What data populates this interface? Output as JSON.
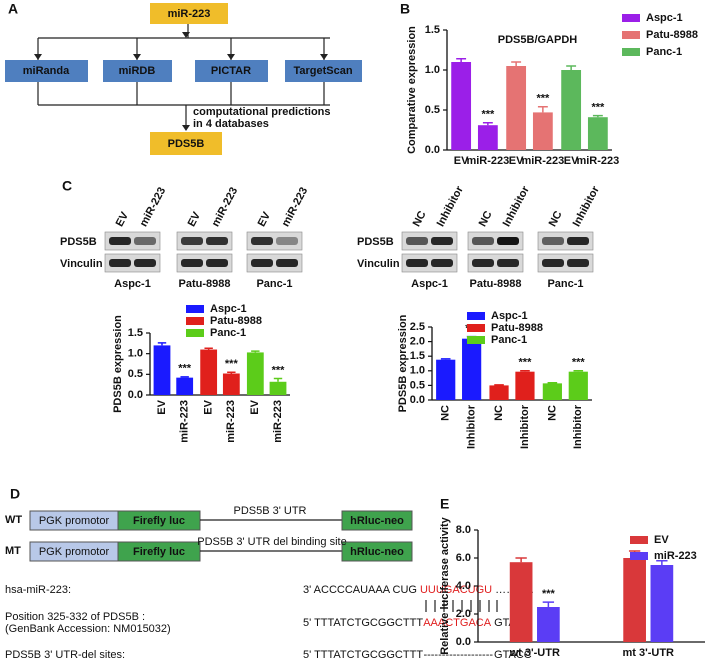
{
  "panel_labels": [
    "A",
    "B",
    "C",
    "D",
    "E"
  ],
  "flowchart": {
    "top": "miR-223",
    "databases": [
      "miRanda",
      "miRDB",
      "PICTAR",
      "TargetScan"
    ],
    "note": [
      "computational predictions",
      "in 4 databases"
    ],
    "result": "PDS5B"
  },
  "blots": [
    {
      "lanes": [
        "EV",
        "miR-223"
      ],
      "rows": [
        "PDS5B",
        "Vinculin"
      ],
      "cells": [
        "Aspc-1",
        "Patu-8988",
        "Panc-1"
      ]
    },
    {
      "lanes": [
        "NC",
        "Inhibitor"
      ],
      "rows": [
        "PDS5B",
        "Vinculin"
      ],
      "cells": [
        "Aspc-1",
        "Patu-8988",
        "Panc-1"
      ]
    }
  ],
  "construct": [
    {
      "label": "WT",
      "promoter": "PGK promotor",
      "luc": "Firefly luc",
      "utr": "PDS5B 3' UTR",
      "neo": "hRluc-neo"
    },
    {
      "label": "MT",
      "promoter": "PGK promotor",
      "luc": "Firefly luc",
      "utr": "PDS5B 3' UTR del binding site",
      "neo": "hRluc-neo"
    }
  ],
  "alignment": [
    {
      "label": [
        "hsa-miR-223:"
      ],
      "prefix": "3' ACCCCAUAAA CUG",
      "highlight": "UUUGACUGU",
      "suffix": "……. …"
    },
    {
      "label": [
        "Position 325-332 of PDS5B :",
        "(GenBank Accession: NM015032)"
      ],
      "prefix": "5'  TTTATCTGCGGCTTT",
      "highlight": "AAACTGACA",
      "suffix": "GTACC"
    },
    {
      "label": [
        "PDS5B 3' UTR-del sites:"
      ],
      "prefix": "5'  TTTATCTGCGGCTTT",
      "highlight": "-------------------",
      "suffix": "GTACC"
    }
  ],
  "chart_data": [
    {
      "type": "bar",
      "grouping": "by_series",
      "title": "PDS5B/GAPDH",
      "y_label": "Comparative expression",
      "categories": [
        "EV",
        "miR-223"
      ],
      "series": [
        {
          "name": "Aspc-1",
          "color": "#9b1fe8",
          "values": [
            1.1,
            0.31
          ],
          "errors": [
            0.04,
            0.03
          ],
          "significance": [
            null,
            "***"
          ]
        },
        {
          "name": "Patu-8988",
          "color": "#e57373",
          "values": [
            1.05,
            0.47
          ],
          "errors": [
            0.05,
            0.07
          ],
          "significance": [
            null,
            "***"
          ]
        },
        {
          "name": "Panc-1",
          "color": "#5cb85c",
          "values": [
            1.0,
            0.41
          ],
          "errors": [
            0.05,
            0.02
          ],
          "significance": [
            null,
            "***"
          ]
        }
      ],
      "ylim": [
        0,
        1.5
      ],
      "yticks": [
        {
          "value": 0,
          "label": "0.0"
        },
        0.5,
        {
          "value": 1,
          "label": "1.0"
        },
        1.5
      ]
    },
    {
      "type": "bar",
      "grouping": "by_series",
      "y_label": "PDS5B expression",
      "categories": [
        "EV",
        "miR-223"
      ],
      "series": [
        {
          "name": "Aspc-1",
          "color": "#1a1aff",
          "values": [
            1.2,
            0.42
          ],
          "errors": [
            0.06,
            0.02
          ],
          "significance": [
            null,
            "***"
          ]
        },
        {
          "name": "Patu-8988",
          "color": "#e0201c",
          "values": [
            1.1,
            0.52
          ],
          "errors": [
            0.03,
            0.03
          ],
          "significance": [
            null,
            "***"
          ]
        },
        {
          "name": "Panc-1",
          "color": "#5ccc1a",
          "values": [
            1.03,
            0.32
          ],
          "errors": [
            0.03,
            0.08
          ],
          "significance": [
            null,
            "***"
          ]
        }
      ],
      "ylim": [
        0,
        1.5
      ],
      "yticks": [
        {
          "value": 0,
          "label": "0.0"
        },
        0.5,
        {
          "value": 1,
          "label": "1.0"
        },
        1.5
      ]
    },
    {
      "type": "bar",
      "grouping": "by_series",
      "y_label": "PDS5B expression",
      "categories": [
        "NC",
        "Inhibitor"
      ],
      "series": [
        {
          "name": "Aspc-1",
          "color": "#1a1aff",
          "values": [
            1.38,
            2.1
          ],
          "errors": [
            0.03,
            0.07
          ],
          "significance": [
            null,
            "***"
          ]
        },
        {
          "name": "Patu-8988",
          "color": "#e0201c",
          "values": [
            0.5,
            0.97
          ],
          "errors": [
            0.02,
            0.03
          ],
          "significance": [
            null,
            "***"
          ]
        },
        {
          "name": "Panc-1",
          "color": "#5ccc1a",
          "values": [
            0.57,
            0.97
          ],
          "errors": [
            0.02,
            0.03
          ],
          "significance": [
            null,
            "***"
          ]
        }
      ],
      "ylim": [
        0,
        2.5
      ],
      "yticks": [
        {
          "value": 0,
          "label": "0.0"
        },
        0.5,
        {
          "value": 1,
          "label": "1.0"
        },
        1.5,
        {
          "value": 2,
          "label": "2.0"
        },
        2.5
      ]
    },
    {
      "type": "bar",
      "grouping": "by_category",
      "y_label": "Relative luciferase activity",
      "categories": [
        "wt 3'-UTR",
        "mt 3'-UTR"
      ],
      "series": [
        {
          "name": "EV",
          "color": "#d9383a",
          "values": [
            5.7,
            6.0
          ],
          "errors": [
            0.3,
            0.5
          ],
          "significance": [
            null,
            null
          ]
        },
        {
          "name": "miR-223",
          "color": "#5b3df5",
          "values": [
            2.5,
            5.5
          ],
          "errors": [
            0.35,
            0.3
          ],
          "significance": [
            "***",
            null
          ]
        }
      ],
      "ylim": [
        0,
        8
      ],
      "yticks": [
        {
          "value": 0,
          "label": "0.0"
        },
        {
          "value": 2,
          "label": "2.0"
        },
        {
          "value": 4,
          "label": "4.0"
        },
        {
          "value": 6,
          "label": "6.0"
        },
        {
          "value": 8,
          "label": "8.0"
        }
      ]
    }
  ]
}
